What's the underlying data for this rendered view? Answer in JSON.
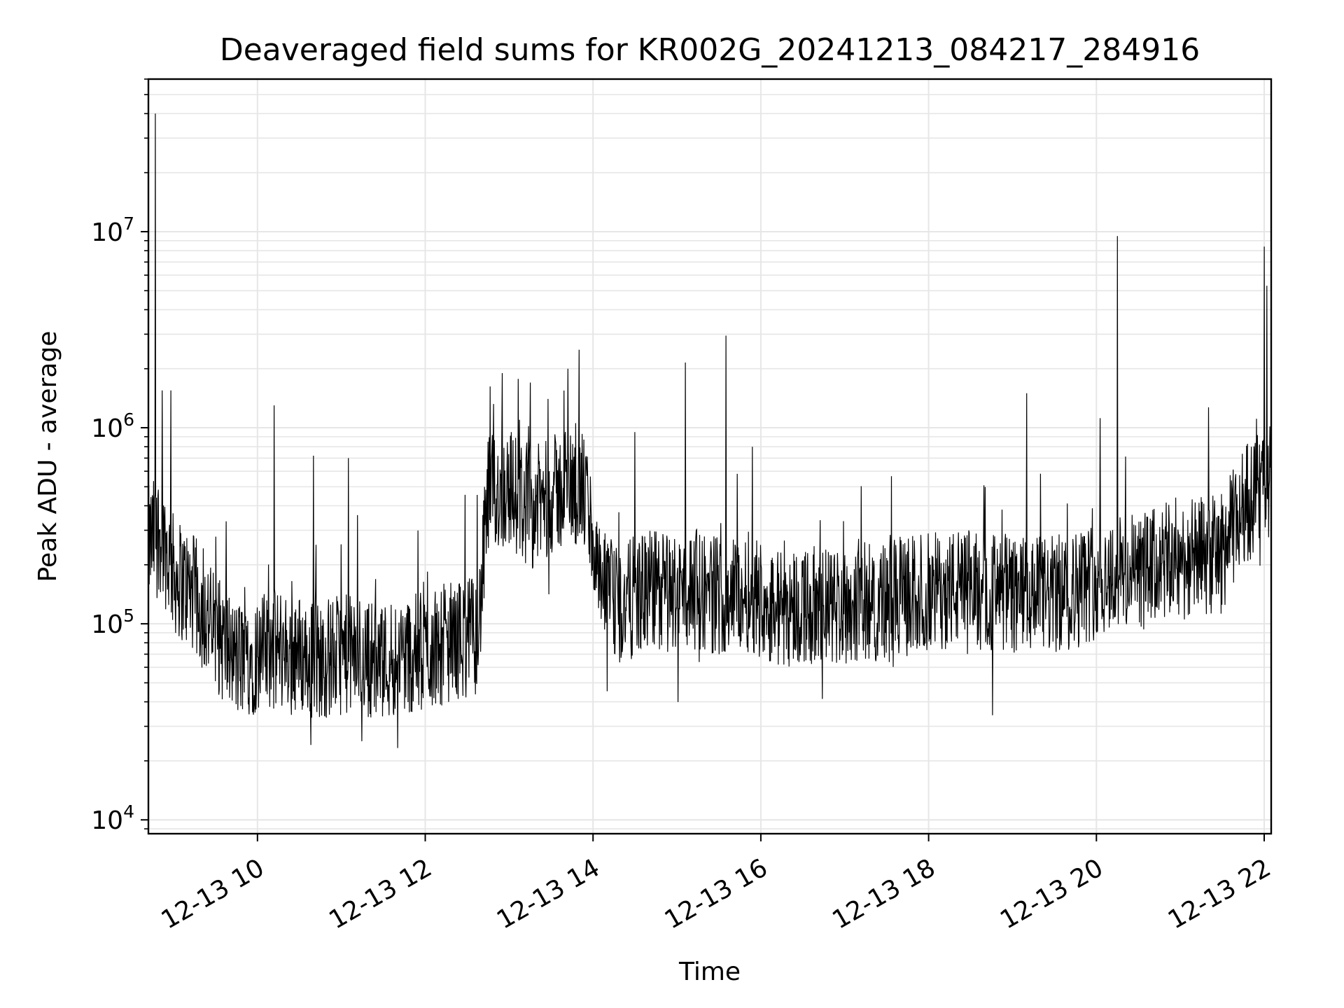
{
  "chart_data": {
    "type": "line",
    "title": "Deaveraged field sums for KR002G_20241213_084217_284916",
    "xlabel": "Time",
    "ylabel": "Peak ADU - average",
    "yscale": "log",
    "ylim": [
      8500,
      60000000
    ],
    "xlim": [
      "2024-12-13T08:42",
      "2024-12-13T22:05"
    ],
    "grid": true,
    "x_tick_labels": [
      "12-13 10",
      "12-13 12",
      "12-13 14",
      "12-13 16",
      "12-13 18",
      "12-13 20",
      "12-13 22"
    ],
    "y_tick_labels": [
      {
        "base": "10",
        "exp": "4"
      },
      {
        "base": "10",
        "exp": "5"
      },
      {
        "base": "10",
        "exp": "6"
      },
      {
        "base": "10",
        "exp": "7"
      }
    ],
    "line_color": "#000000",
    "series": [
      {
        "x": [
          "2024-12-13T08:42",
          "2024-12-13T08:50",
          "2024-12-13T09:00",
          "2024-12-13T09:15",
          "2024-12-13T09:30",
          "2024-12-13T09:45",
          "2024-12-13T10:00",
          "2024-12-13T10:15",
          "2024-12-13T10:30",
          "2024-12-13T10:45",
          "2024-12-13T11:00",
          "2024-12-13T11:15",
          "2024-12-13T11:30",
          "2024-12-13T11:45",
          "2024-12-13T12:00",
          "2024-12-13T12:15",
          "2024-12-13T12:30",
          "2024-12-13T12:38",
          "2024-12-13T12:45",
          "2024-12-13T13:00",
          "2024-12-13T13:15",
          "2024-12-13T13:30",
          "2024-12-13T13:45",
          "2024-12-13T13:55",
          "2024-12-13T14:05",
          "2024-12-13T14:20",
          "2024-12-13T14:30",
          "2024-12-13T14:45",
          "2024-12-13T15:00",
          "2024-12-13T15:15",
          "2024-12-13T15:30",
          "2024-12-13T15:45",
          "2024-12-13T15:55",
          "2024-12-13T16:10",
          "2024-12-13T16:30",
          "2024-12-13T16:45",
          "2024-12-13T17:00",
          "2024-12-13T17:15",
          "2024-12-13T17:30",
          "2024-12-13T17:45",
          "2024-12-13T18:00",
          "2024-12-13T18:15",
          "2024-12-13T18:30",
          "2024-12-13T18:45",
          "2024-12-13T19:00",
          "2024-12-13T19:15",
          "2024-12-13T19:30",
          "2024-12-13T19:45",
          "2024-12-13T20:00",
          "2024-12-13T20:15",
          "2024-12-13T20:30",
          "2024-12-13T20:45",
          "2024-12-13T21:00",
          "2024-12-13T21:15",
          "2024-12-13T21:30",
          "2024-12-13T21:45",
          "2024-12-13T22:00",
          "2024-12-13T22:05"
        ],
        "y": [
          250000,
          300000,
          180000,
          140000,
          90000,
          65000,
          70000,
          75000,
          70000,
          65000,
          70000,
          68000,
          65000,
          70000,
          72000,
          80000,
          85000,
          90000,
          450000,
          500000,
          380000,
          450000,
          500000,
          450000,
          150000,
          120000,
          140000,
          150000,
          145000,
          150000,
          140000,
          145000,
          145000,
          120000,
          125000,
          120000,
          125000,
          130000,
          130000,
          140000,
          145000,
          150000,
          150000,
          145000,
          140000,
          135000,
          140000,
          150000,
          170000,
          180000,
          180000,
          200000,
          210000,
          220000,
          230000,
          400000,
          500000,
          550000
        ],
        "spikes": [
          {
            "x": "2024-12-13T08:47",
            "y": 40000000
          },
          {
            "x": "2024-12-13T08:52",
            "y": 1550000
          },
          {
            "x": "2024-12-13T08:58",
            "y": 1550000
          },
          {
            "x": "2024-12-13T10:12",
            "y": 1300000
          },
          {
            "x": "2024-12-13T10:40",
            "y": 720000
          },
          {
            "x": "2024-12-13T11:05",
            "y": 700000
          },
          {
            "x": "2024-12-13T12:55",
            "y": 1900000
          },
          {
            "x": "2024-12-13T13:15",
            "y": 1700000
          },
          {
            "x": "2024-12-13T13:50",
            "y": 2500000
          },
          {
            "x": "2024-12-13T13:42",
            "y": 2000000
          },
          {
            "x": "2024-12-13T14:30",
            "y": 950000
          },
          {
            "x": "2024-12-13T15:06",
            "y": 2150000
          },
          {
            "x": "2024-12-13T15:35",
            "y": 2950000
          },
          {
            "x": "2024-12-13T15:54",
            "y": 800000
          },
          {
            "x": "2024-12-13T19:10",
            "y": 1500000
          },
          {
            "x": "2024-12-13T20:15",
            "y": 9500000
          },
          {
            "x": "2024-12-13T22:00",
            "y": 8400000
          },
          {
            "x": "2024-12-13T22:02",
            "y": 5300000
          }
        ]
      }
    ]
  }
}
